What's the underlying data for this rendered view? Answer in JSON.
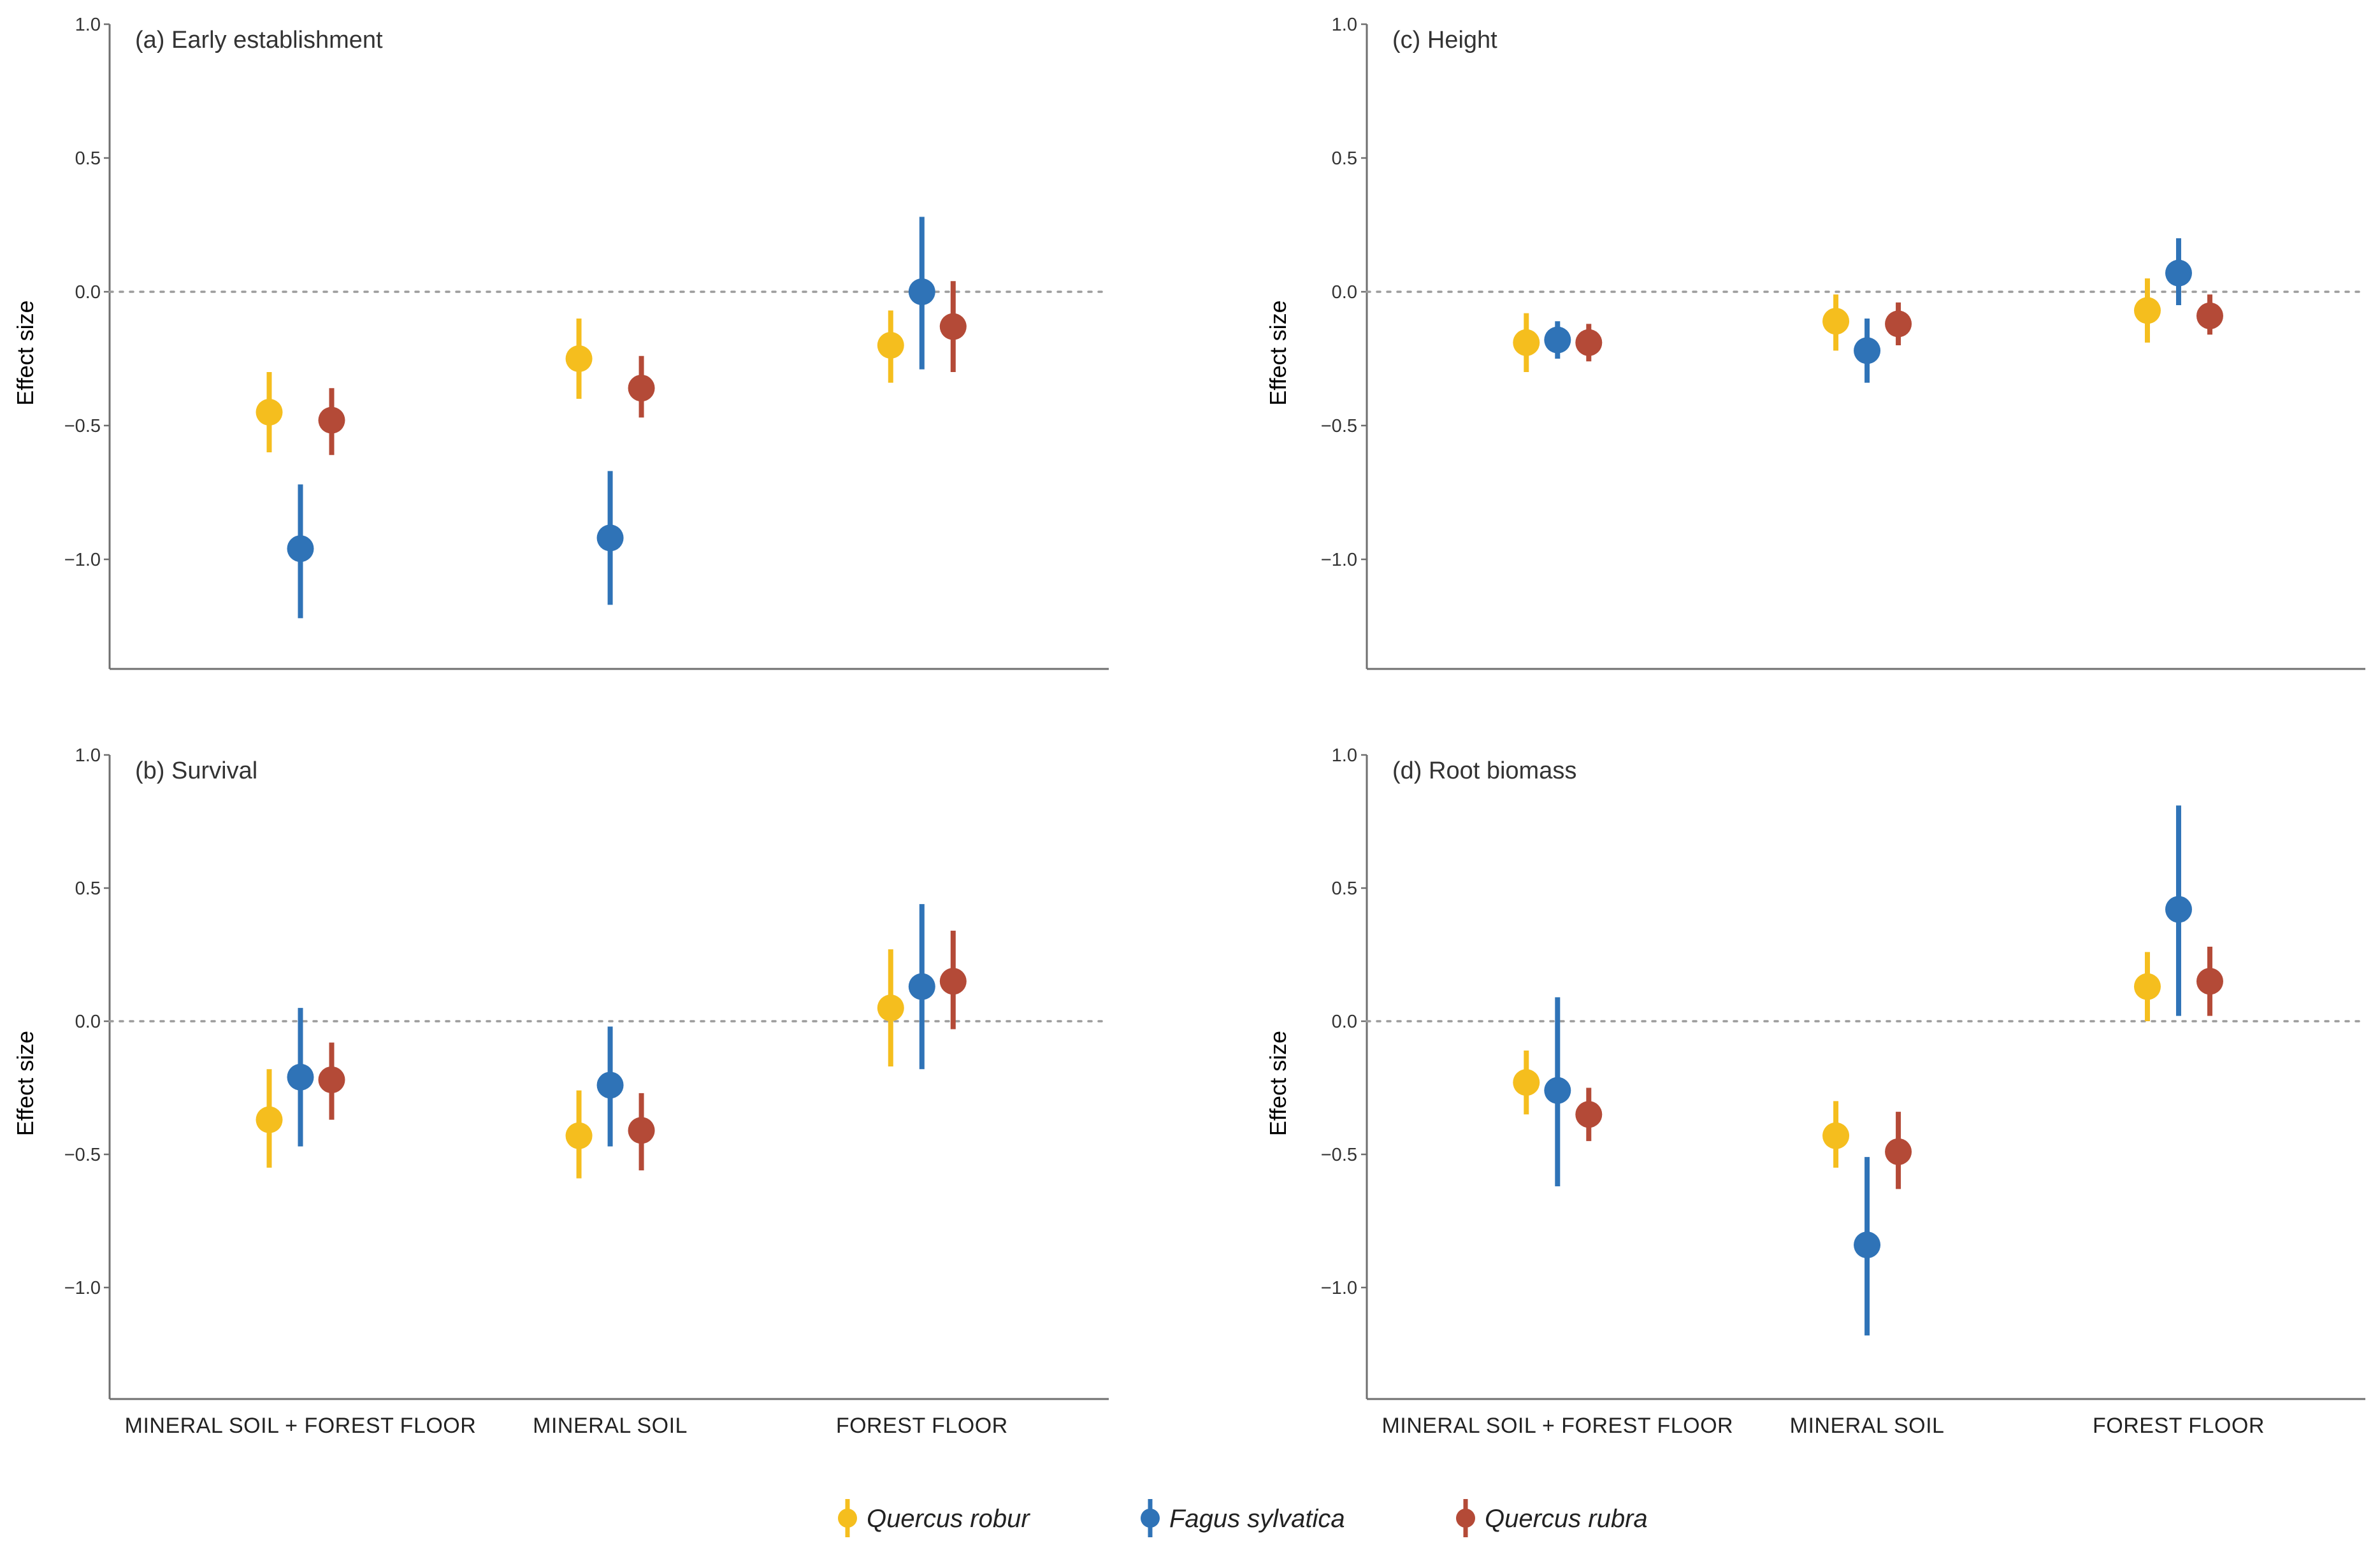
{
  "figure": {
    "legend": [
      {
        "label": "Quercus robur",
        "color": "#F5BE1E"
      },
      {
        "label": "Fagus sylvatica",
        "color": "#2F73B7"
      },
      {
        "label": "Quercus rubra",
        "color": "#B44A37"
      }
    ]
  },
  "chart_data": [
    {
      "type": "scatter",
      "title": "(a) Early establishment",
      "ylabel": "Effect size",
      "xlabel": "",
      "ylim": [
        -1.4,
        1.0
      ],
      "yticks": [
        1.0,
        0.5,
        0.0,
        -0.5,
        -1.0
      ],
      "ytick_labels": [
        "1.0",
        "0.5",
        "0.0",
        "−0.5",
        "−1.0"
      ],
      "reference_line": 0.0,
      "categories": [
        "MINERAL SOIL + FOREST FLOOR",
        "MINERAL SOIL",
        "FOREST FLOOR"
      ],
      "show_category_labels": false,
      "series": [
        {
          "name": "Quercus robur",
          "values": [
            -0.45,
            -0.25,
            -0.2
          ],
          "lower": [
            -0.6,
            -0.4,
            -0.34
          ],
          "upper": [
            -0.3,
            -0.1,
            -0.07
          ]
        },
        {
          "name": "Fagus sylvatica",
          "values": [
            -0.96,
            -0.92,
            0.0
          ],
          "lower": [
            -1.22,
            -1.17,
            -0.29
          ],
          "upper": [
            -0.72,
            -0.67,
            0.28
          ]
        },
        {
          "name": "Quercus rubra",
          "values": [
            -0.48,
            -0.36,
            -0.13
          ],
          "lower": [
            -0.61,
            -0.47,
            -0.3
          ],
          "upper": [
            -0.36,
            -0.24,
            0.04
          ]
        }
      ]
    },
    {
      "type": "scatter",
      "title": "(b) Survival",
      "ylabel": "Effect size",
      "xlabel": "",
      "ylim": [
        -1.4,
        1.0
      ],
      "yticks": [
        1.0,
        0.5,
        0.0,
        -0.5,
        -1.0
      ],
      "ytick_labels": [
        "1.0",
        "0.5",
        "0.0",
        "−0.5",
        "−1.0"
      ],
      "reference_line": 0.0,
      "categories": [
        "MINERAL SOIL + FOREST FLOOR",
        "MINERAL SOIL",
        "FOREST FLOOR"
      ],
      "show_category_labels": true,
      "series": [
        {
          "name": "Quercus robur",
          "values": [
            -0.37,
            -0.43,
            0.05
          ],
          "lower": [
            -0.55,
            -0.59,
            -0.17
          ],
          "upper": [
            -0.18,
            -0.26,
            0.27
          ]
        },
        {
          "name": "Fagus sylvatica",
          "values": [
            -0.21,
            -0.24,
            0.13
          ],
          "lower": [
            -0.47,
            -0.47,
            -0.18
          ],
          "upper": [
            0.05,
            -0.02,
            0.44
          ]
        },
        {
          "name": "Quercus rubra",
          "values": [
            -0.22,
            -0.41,
            0.15
          ],
          "lower": [
            -0.37,
            -0.56,
            -0.03
          ],
          "upper": [
            -0.08,
            -0.27,
            0.34
          ]
        }
      ]
    },
    {
      "type": "scatter",
      "title": "(c) Height",
      "ylabel": "Effect size",
      "xlabel": "",
      "ylim": [
        -1.4,
        1.0
      ],
      "yticks": [
        1.0,
        0.5,
        0.0,
        -0.5,
        -1.0
      ],
      "ytick_labels": [
        "1.0",
        "0.5",
        "0.0",
        "−0.5",
        "−1.0"
      ],
      "reference_line": 0.0,
      "categories": [
        "MINERAL SOIL + FOREST FLOOR",
        "MINERAL SOIL",
        "FOREST FLOOR"
      ],
      "show_category_labels": false,
      "series": [
        {
          "name": "Quercus robur",
          "values": [
            -0.19,
            -0.11,
            -0.07
          ],
          "lower": [
            -0.3,
            -0.22,
            -0.19
          ],
          "upper": [
            -0.08,
            -0.01,
            0.05
          ]
        },
        {
          "name": "Fagus sylvatica",
          "values": [
            -0.18,
            -0.22,
            0.07
          ],
          "lower": [
            -0.25,
            -0.34,
            -0.05
          ],
          "upper": [
            -0.11,
            -0.1,
            0.2
          ]
        },
        {
          "name": "Quercus rubra",
          "values": [
            -0.19,
            -0.12,
            -0.09
          ],
          "lower": [
            -0.26,
            -0.2,
            -0.16
          ],
          "upper": [
            -0.12,
            -0.04,
            -0.01
          ]
        }
      ]
    },
    {
      "type": "scatter",
      "title": "(d) Root biomass",
      "ylabel": "Effect size",
      "xlabel": "",
      "ylim": [
        -1.4,
        1.0
      ],
      "yticks": [
        1.0,
        0.5,
        0.0,
        -0.5,
        -1.0
      ],
      "ytick_labels": [
        "1.0",
        "0.5",
        "0.0",
        "−0.5",
        "−1.0"
      ],
      "reference_line": 0.0,
      "categories": [
        "MINERAL SOIL + FOREST FLOOR",
        "MINERAL SOIL",
        "FOREST FLOOR"
      ],
      "show_category_labels": true,
      "series": [
        {
          "name": "Quercus robur",
          "values": [
            -0.23,
            -0.43,
            0.13
          ],
          "lower": [
            -0.35,
            -0.55,
            0.0
          ],
          "upper": [
            -0.11,
            -0.3,
            0.26
          ]
        },
        {
          "name": "Fagus sylvatica",
          "values": [
            -0.26,
            -0.84,
            0.42
          ],
          "lower": [
            -0.62,
            -1.18,
            0.02
          ],
          "upper": [
            0.09,
            -0.51,
            0.81
          ]
        },
        {
          "name": "Quercus rubra",
          "values": [
            -0.35,
            -0.49,
            0.15
          ],
          "lower": [
            -0.45,
            -0.63,
            0.02
          ],
          "upper": [
            -0.25,
            -0.34,
            0.28
          ]
        }
      ]
    }
  ]
}
